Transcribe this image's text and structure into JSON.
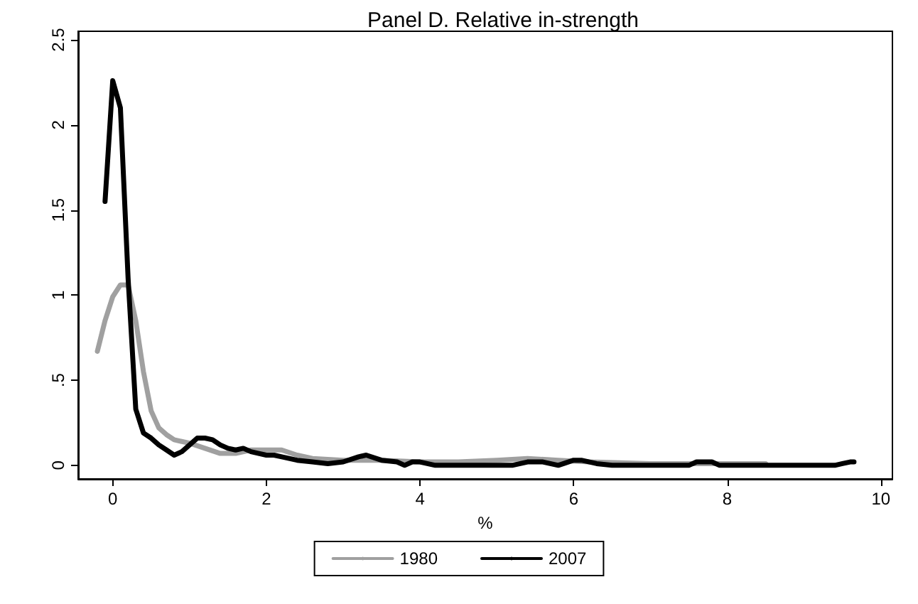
{
  "chart_data": {
    "type": "line",
    "title": "Panel D. Relative in-strength",
    "xlabel": "%",
    "xlim": [
      -0.45,
      10.15
    ],
    "xticks": [
      0,
      2,
      4,
      6,
      8,
      10
    ],
    "ylim": [
      -0.08,
      2.55
    ],
    "yticks": [
      0,
      {
        "value": 0.5,
        "label": ".5"
      },
      1,
      {
        "value": 1.5,
        "label": "1.5"
      },
      2,
      {
        "value": 2.5,
        "label": "2.5"
      }
    ],
    "grid": false,
    "legend": "bottom",
    "marker": "none",
    "line_style": "solid",
    "series": [
      {
        "name": "1980",
        "color": "#a0a0a0",
        "x": [
          -0.2,
          -0.1,
          0,
          0.1,
          0.2,
          0.3,
          0.4,
          0.5,
          0.6,
          0.7,
          0.8,
          1.0,
          1.2,
          1.4,
          1.6,
          1.8,
          2.0,
          2.2,
          2.4,
          2.6,
          3.0,
          3.5,
          4.0,
          4.5,
          5.0,
          5.4,
          5.8,
          6.2,
          7.0,
          8.0,
          8.5
        ],
        "values": [
          0.67,
          0.85,
          0.99,
          1.06,
          1.06,
          0.85,
          0.55,
          0.32,
          0.22,
          0.18,
          0.15,
          0.13,
          0.1,
          0.07,
          0.07,
          0.09,
          0.09,
          0.09,
          0.06,
          0.04,
          0.03,
          0.03,
          0.02,
          0.02,
          0.03,
          0.04,
          0.03,
          0.02,
          0.01,
          0.01,
          0.01
        ]
      },
      {
        "name": "2007",
        "color": "#000000",
        "x": [
          -0.1,
          0,
          0.1,
          0.2,
          0.3,
          0.4,
          0.5,
          0.6,
          0.7,
          0.8,
          0.9,
          1.0,
          1.1,
          1.2,
          1.3,
          1.4,
          1.5,
          1.6,
          1.7,
          1.8,
          1.9,
          2.0,
          2.1,
          2.2,
          2.4,
          2.6,
          2.8,
          3.0,
          3.2,
          3.3,
          3.5,
          3.7,
          3.8,
          3.9,
          4.0,
          4.2,
          5.2,
          5.4,
          5.6,
          5.8,
          6.0,
          6.1,
          6.3,
          6.5,
          7.5,
          7.6,
          7.8,
          7.9,
          9.4,
          9.5,
          9.6,
          9.65
        ],
        "values": [
          1.55,
          2.26,
          2.1,
          1.1,
          0.33,
          0.19,
          0.16,
          0.12,
          0.09,
          0.06,
          0.08,
          0.12,
          0.16,
          0.16,
          0.15,
          0.12,
          0.1,
          0.09,
          0.1,
          0.08,
          0.07,
          0.06,
          0.06,
          0.05,
          0.03,
          0.02,
          0.01,
          0.02,
          0.05,
          0.06,
          0.03,
          0.02,
          0,
          0.02,
          0.02,
          0,
          0,
          0.02,
          0.02,
          0,
          0.03,
          0.03,
          0.01,
          0,
          0,
          0.02,
          0.02,
          0,
          0,
          0.01,
          0.02,
          0.02
        ]
      }
    ]
  }
}
